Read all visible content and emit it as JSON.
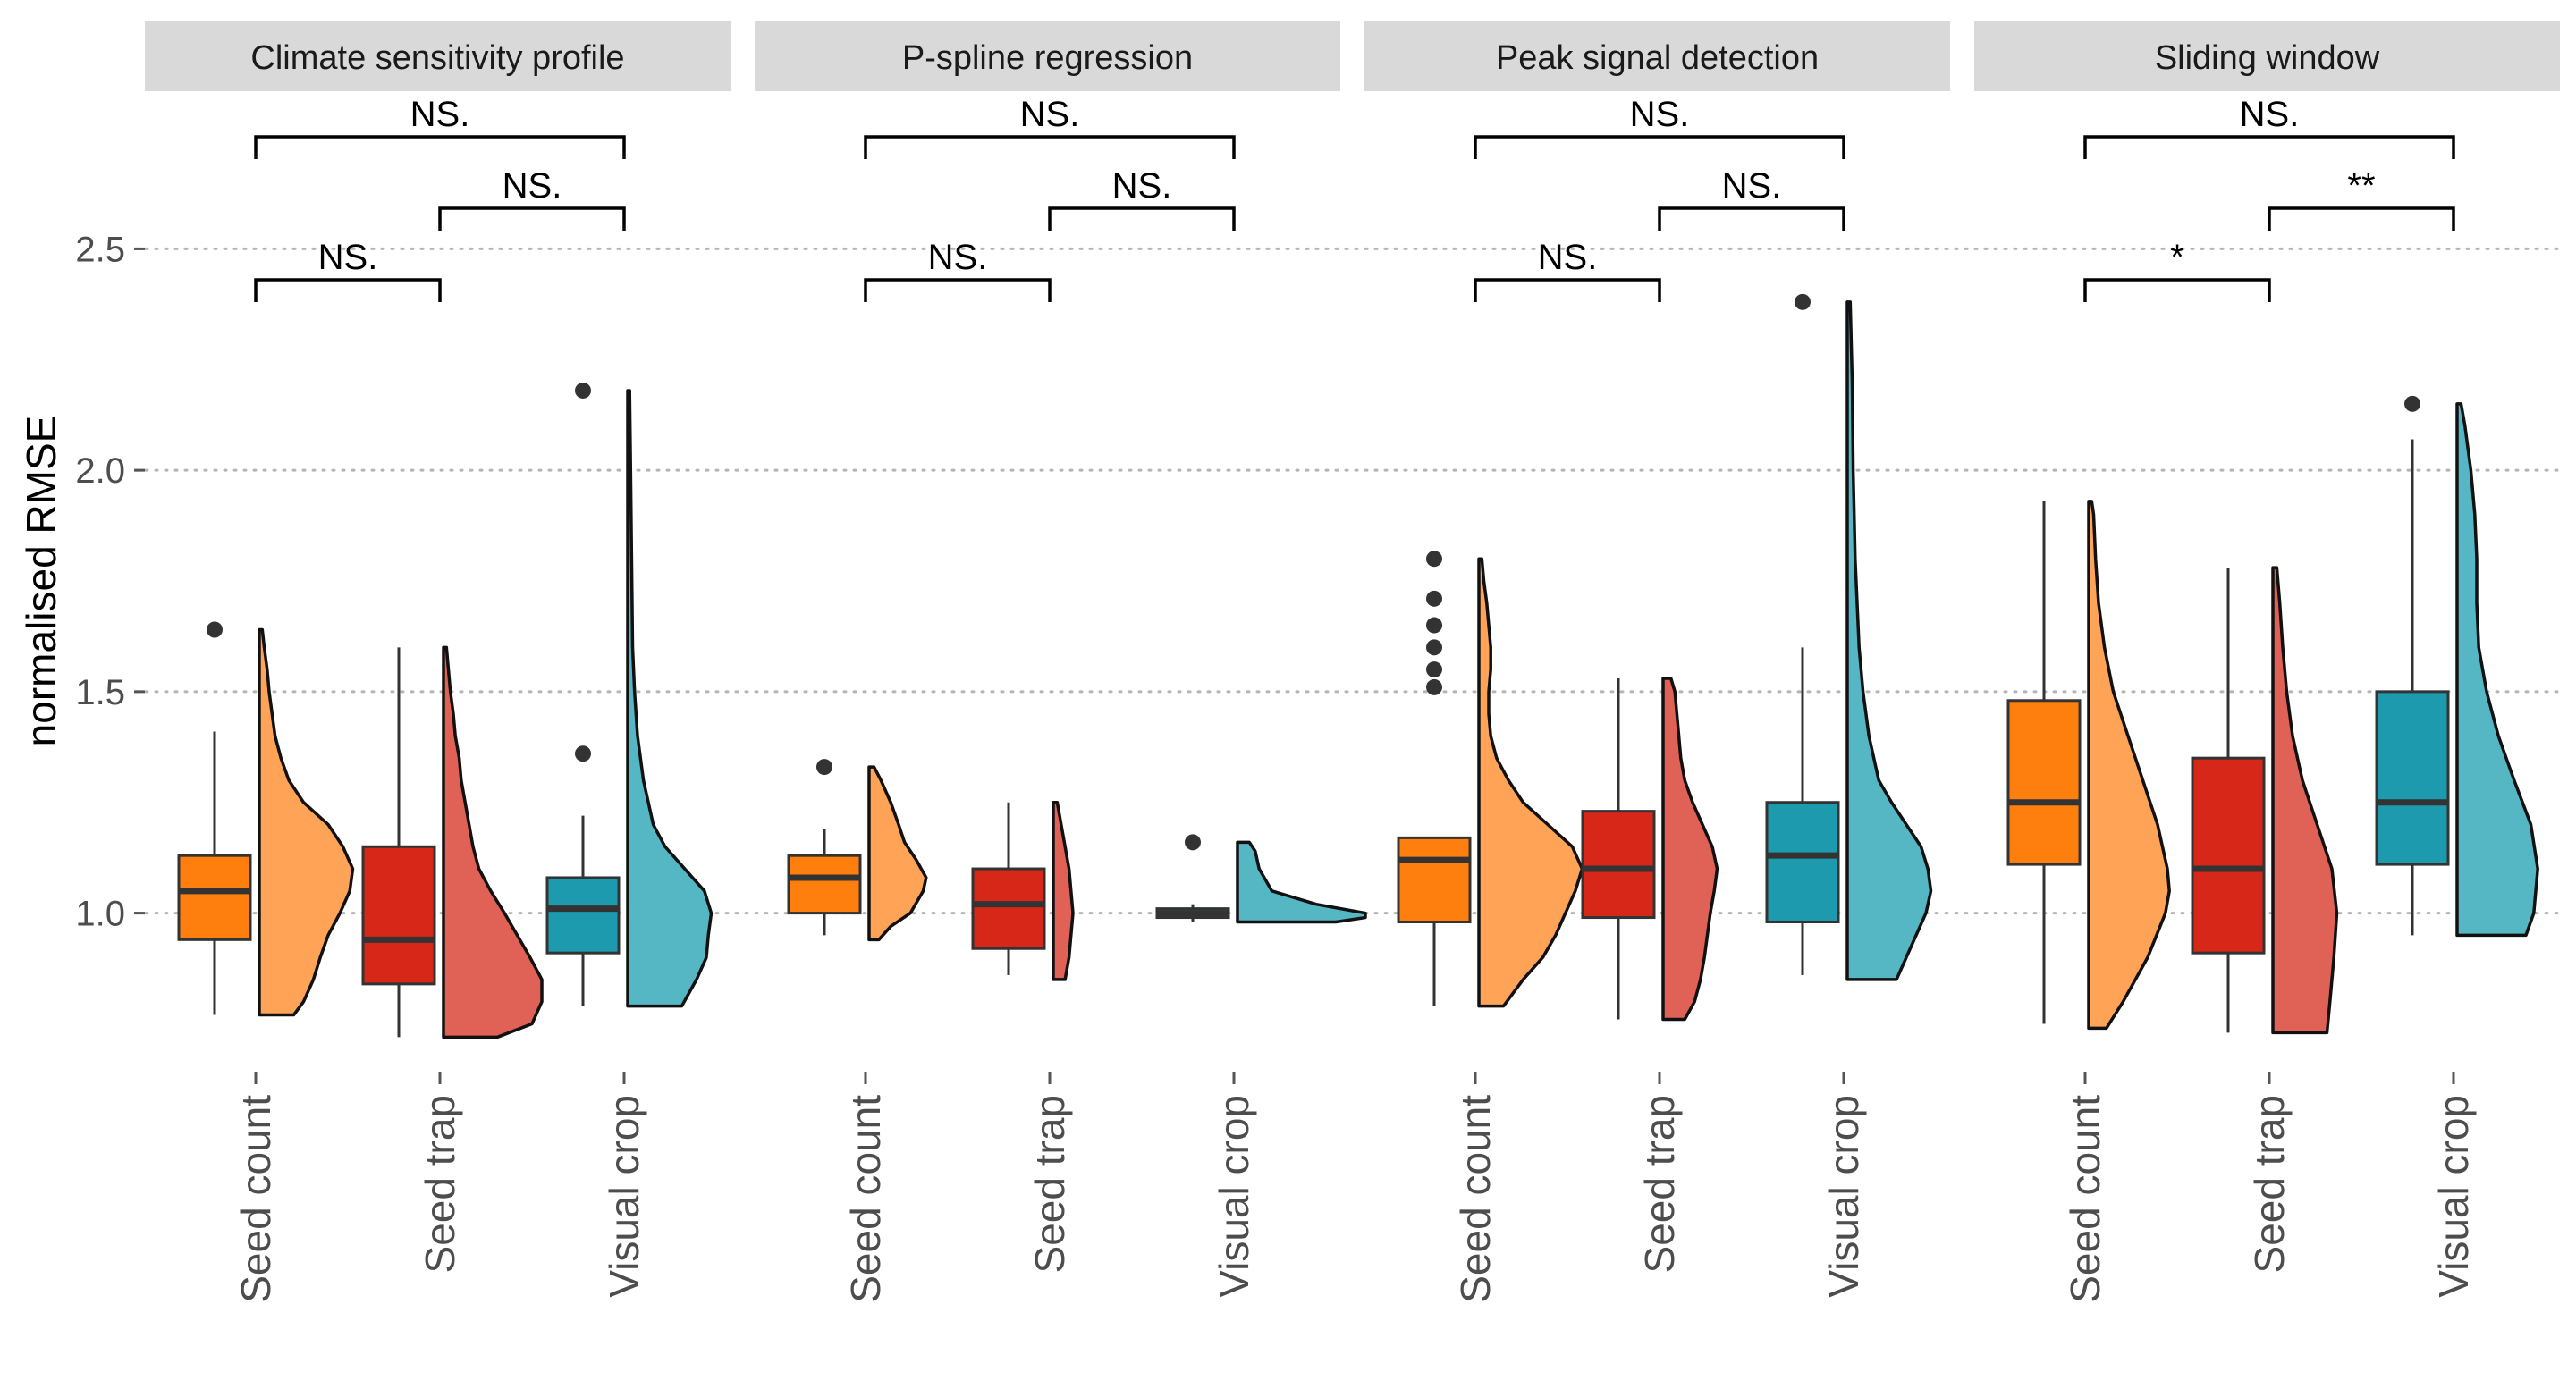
{
  "chart_data": {
    "type": "raincloud-boxplot",
    "ylabel": "normalised RMSE",
    "xlabel": "",
    "ylim": [
      0.65,
      2.85
    ],
    "yticks": [
      1.0,
      1.5,
      2.0,
      2.5
    ],
    "ytick_labels": [
      "1.0",
      "1.5",
      "2.0",
      "2.5"
    ],
    "grid": "horizontal dotted at major y ticks",
    "categories": [
      "Seed count",
      "Seed trap",
      "Visual crop"
    ],
    "colors": {
      "Seed count": {
        "box": "#ff7f0e",
        "violin": "#ffa357"
      },
      "Seed trap": {
        "box": "#d62718",
        "violin": "#e06155"
      },
      "Visual crop": {
        "box": "#1d9aae",
        "violin": "#55b6c4"
      }
    },
    "comparison_pairs": [
      [
        "Seed count",
        "Visual crop"
      ],
      [
        "Seed trap",
        "Visual crop"
      ],
      [
        "Seed count",
        "Seed trap"
      ]
    ],
    "panels": [
      {
        "title": "Climate sensitivity profile",
        "groups": [
          {
            "category": "Seed count",
            "whisker_low": 0.77,
            "q1": 0.94,
            "median": 1.05,
            "q3": 1.13,
            "whisker_high": 1.41,
            "outliers": [
              1.64
            ],
            "density_range": [
              0.77,
              1.64
            ],
            "density": [
              [
                0.77,
                0.35
              ],
              [
                0.8,
                0.45
              ],
              [
                0.85,
                0.55
              ],
              [
                0.9,
                0.62
              ],
              [
                0.95,
                0.7
              ],
              [
                1.0,
                0.82
              ],
              [
                1.05,
                0.92
              ],
              [
                1.1,
                0.95
              ],
              [
                1.15,
                0.85
              ],
              [
                1.2,
                0.7
              ],
              [
                1.25,
                0.45
              ],
              [
                1.3,
                0.3
              ],
              [
                1.35,
                0.22
              ],
              [
                1.4,
                0.16
              ],
              [
                1.45,
                0.13
              ],
              [
                1.5,
                0.1
              ],
              [
                1.55,
                0.08
              ],
              [
                1.6,
                0.05
              ],
              [
                1.64,
                0.03
              ]
            ]
          },
          {
            "category": "Seed trap",
            "whisker_low": 0.72,
            "q1": 0.84,
            "median": 0.94,
            "q3": 1.15,
            "whisker_high": 1.6,
            "outliers": [],
            "density_range": [
              0.72,
              1.6
            ],
            "density": [
              [
                0.72,
                0.55
              ],
              [
                0.75,
                0.9
              ],
              [
                0.8,
                1.0
              ],
              [
                0.85,
                1.0
              ],
              [
                0.9,
                0.88
              ],
              [
                0.95,
                0.75
              ],
              [
                1.0,
                0.62
              ],
              [
                1.05,
                0.48
              ],
              [
                1.1,
                0.36
              ],
              [
                1.15,
                0.3
              ],
              [
                1.2,
                0.26
              ],
              [
                1.25,
                0.22
              ],
              [
                1.3,
                0.18
              ],
              [
                1.35,
                0.16
              ],
              [
                1.4,
                0.12
              ],
              [
                1.45,
                0.1
              ],
              [
                1.5,
                0.07
              ],
              [
                1.55,
                0.05
              ],
              [
                1.6,
                0.03
              ]
            ]
          },
          {
            "category": "Visual crop",
            "whisker_low": 0.79,
            "q1": 0.91,
            "median": 1.01,
            "q3": 1.08,
            "whisker_high": 1.22,
            "outliers": [
              1.36,
              2.18
            ],
            "density_range": [
              0.79,
              2.18
            ],
            "density": [
              [
                0.79,
                0.55
              ],
              [
                0.85,
                0.7
              ],
              [
                0.9,
                0.8
              ],
              [
                0.95,
                0.82
              ],
              [
                1.0,
                0.85
              ],
              [
                1.05,
                0.78
              ],
              [
                1.1,
                0.58
              ],
              [
                1.15,
                0.38
              ],
              [
                1.2,
                0.26
              ],
              [
                1.3,
                0.16
              ],
              [
                1.4,
                0.1
              ],
              [
                1.5,
                0.07
              ],
              [
                1.6,
                0.05
              ],
              [
                1.8,
                0.04
              ],
              [
                2.0,
                0.03
              ],
              [
                2.18,
                0.02
              ]
            ]
          }
        ],
        "significance": [
          "NS.",
          "NS.",
          "NS."
        ]
      },
      {
        "title": "P-spline regression",
        "groups": [
          {
            "category": "Seed count",
            "whisker_low": 0.95,
            "q1": 1.0,
            "median": 1.08,
            "q3": 1.13,
            "whisker_high": 1.19,
            "outliers": [
              1.33
            ],
            "density_range": [
              0.94,
              1.33
            ],
            "density": [
              [
                0.94,
                0.1
              ],
              [
                0.97,
                0.22
              ],
              [
                1.0,
                0.42
              ],
              [
                1.05,
                0.55
              ],
              [
                1.08,
                0.58
              ],
              [
                1.12,
                0.48
              ],
              [
                1.16,
                0.36
              ],
              [
                1.2,
                0.3
              ],
              [
                1.25,
                0.22
              ],
              [
                1.3,
                0.12
              ],
              [
                1.33,
                0.05
              ]
            ]
          },
          {
            "category": "Seed trap",
            "whisker_low": 0.86,
            "q1": 0.92,
            "median": 1.02,
            "q3": 1.1,
            "whisker_high": 1.25,
            "outliers": [],
            "density_range": [
              0.85,
              1.25
            ],
            "density": [
              [
                0.85,
                0.12
              ],
              [
                0.9,
                0.16
              ],
              [
                0.95,
                0.18
              ],
              [
                1.0,
                0.2
              ],
              [
                1.05,
                0.18
              ],
              [
                1.1,
                0.16
              ],
              [
                1.15,
                0.12
              ],
              [
                1.2,
                0.08
              ],
              [
                1.25,
                0.04
              ]
            ]
          },
          {
            "category": "Visual crop",
            "whisker_low": 0.98,
            "q1": 0.99,
            "median": 1.0,
            "q3": 1.01,
            "whisker_high": 1.02,
            "outliers": [
              1.16
            ],
            "density_range": [
              0.98,
              1.16
            ],
            "density": [
              [
                0.98,
                1.0
              ],
              [
                0.99,
                1.3
              ],
              [
                1.0,
                1.3
              ],
              [
                1.02,
                0.8
              ],
              [
                1.05,
                0.35
              ],
              [
                1.1,
                0.22
              ],
              [
                1.14,
                0.18
              ],
              [
                1.16,
                0.12
              ]
            ]
          }
        ],
        "significance": [
          "NS.",
          "NS.",
          "NS."
        ]
      },
      {
        "title": "Peak signal detection",
        "groups": [
          {
            "category": "Seed count",
            "whisker_low": 0.79,
            "q1": 0.98,
            "median": 1.12,
            "q3": 1.17,
            "whisker_high": 1.17,
            "outliers": [
              1.51,
              1.55,
              1.6,
              1.65,
              1.71,
              1.8
            ],
            "density_range": [
              0.79,
              1.8
            ],
            "density": [
              [
                0.79,
                0.25
              ],
              [
                0.85,
                0.45
              ],
              [
                0.9,
                0.65
              ],
              [
                0.95,
                0.78
              ],
              [
                1.0,
                0.88
              ],
              [
                1.05,
                0.98
              ],
              [
                1.1,
                1.05
              ],
              [
                1.15,
                0.95
              ],
              [
                1.2,
                0.7
              ],
              [
                1.25,
                0.45
              ],
              [
                1.3,
                0.3
              ],
              [
                1.35,
                0.18
              ],
              [
                1.4,
                0.12
              ],
              [
                1.45,
                0.1
              ],
              [
                1.5,
                0.1
              ],
              [
                1.55,
                0.12
              ],
              [
                1.6,
                0.12
              ],
              [
                1.65,
                0.1
              ],
              [
                1.7,
                0.08
              ],
              [
                1.75,
                0.05
              ],
              [
                1.8,
                0.03
              ]
            ]
          },
          {
            "category": "Seed trap",
            "whisker_low": 0.76,
            "q1": 0.99,
            "median": 1.1,
            "q3": 1.23,
            "whisker_high": 1.53,
            "outliers": [],
            "density_range": [
              0.76,
              1.53
            ],
            "density": [
              [
                0.76,
                0.22
              ],
              [
                0.8,
                0.32
              ],
              [
                0.85,
                0.38
              ],
              [
                0.9,
                0.42
              ],
              [
                0.95,
                0.45
              ],
              [
                1.0,
                0.48
              ],
              [
                1.05,
                0.52
              ],
              [
                1.1,
                0.55
              ],
              [
                1.15,
                0.5
              ],
              [
                1.2,
                0.4
              ],
              [
                1.25,
                0.3
              ],
              [
                1.3,
                0.22
              ],
              [
                1.35,
                0.18
              ],
              [
                1.4,
                0.16
              ],
              [
                1.45,
                0.14
              ],
              [
                1.5,
                0.12
              ],
              [
                1.53,
                0.08
              ]
            ]
          },
          {
            "category": "Visual crop",
            "whisker_low": 0.86,
            "q1": 0.98,
            "median": 1.13,
            "q3": 1.25,
            "whisker_high": 1.6,
            "outliers": [
              2.38
            ],
            "density_range": [
              0.85,
              2.38
            ],
            "density": [
              [
                0.85,
                0.5
              ],
              [
                0.9,
                0.6
              ],
              [
                0.95,
                0.7
              ],
              [
                1.0,
                0.8
              ],
              [
                1.05,
                0.85
              ],
              [
                1.1,
                0.82
              ],
              [
                1.15,
                0.75
              ],
              [
                1.2,
                0.6
              ],
              [
                1.25,
                0.45
              ],
              [
                1.3,
                0.32
              ],
              [
                1.4,
                0.22
              ],
              [
                1.5,
                0.16
              ],
              [
                1.6,
                0.12
              ],
              [
                1.8,
                0.08
              ],
              [
                2.0,
                0.06
              ],
              [
                2.2,
                0.05
              ],
              [
                2.38,
                0.03
              ]
            ]
          }
        ],
        "significance": [
          "NS.",
          "NS.",
          "NS."
        ]
      },
      {
        "title": "Sliding window",
        "groups": [
          {
            "category": "Seed count",
            "whisker_low": 0.75,
            "q1": 1.11,
            "median": 1.25,
            "q3": 1.48,
            "whisker_high": 1.93,
            "outliers": [],
            "density_range": [
              0.74,
              1.93
            ],
            "density": [
              [
                0.74,
                0.18
              ],
              [
                0.8,
                0.35
              ],
              [
                0.9,
                0.6
              ],
              [
                1.0,
                0.78
              ],
              [
                1.05,
                0.82
              ],
              [
                1.1,
                0.8
              ],
              [
                1.2,
                0.7
              ],
              [
                1.3,
                0.55
              ],
              [
                1.4,
                0.4
              ],
              [
                1.5,
                0.25
              ],
              [
                1.6,
                0.16
              ],
              [
                1.7,
                0.1
              ],
              [
                1.8,
                0.07
              ],
              [
                1.9,
                0.05
              ],
              [
                1.93,
                0.03
              ]
            ]
          },
          {
            "category": "Seed trap",
            "whisker_low": 0.73,
            "q1": 0.91,
            "median": 1.1,
            "q3": 1.35,
            "whisker_high": 1.78,
            "outliers": [],
            "density_range": [
              0.73,
              1.78
            ],
            "density": [
              [
                0.73,
                0.55
              ],
              [
                0.8,
                0.58
              ],
              [
                0.9,
                0.62
              ],
              [
                1.0,
                0.65
              ],
              [
                1.1,
                0.6
              ],
              [
                1.2,
                0.45
              ],
              [
                1.3,
                0.3
              ],
              [
                1.4,
                0.2
              ],
              [
                1.5,
                0.14
              ],
              [
                1.6,
                0.1
              ],
              [
                1.7,
                0.07
              ],
              [
                1.78,
                0.04
              ]
            ]
          },
          {
            "category": "Visual crop",
            "whisker_low": 0.95,
            "q1": 1.11,
            "median": 1.25,
            "q3": 1.5,
            "whisker_high": 2.07,
            "outliers": [
              2.15
            ],
            "density_range": [
              0.95,
              2.15
            ],
            "density": [
              [
                0.95,
                0.7
              ],
              [
                1.0,
                0.78
              ],
              [
                1.1,
                0.82
              ],
              [
                1.2,
                0.75
              ],
              [
                1.3,
                0.58
              ],
              [
                1.4,
                0.42
              ],
              [
                1.5,
                0.3
              ],
              [
                1.6,
                0.22
              ],
              [
                1.7,
                0.2
              ],
              [
                1.8,
                0.2
              ],
              [
                1.9,
                0.18
              ],
              [
                2.0,
                0.14
              ],
              [
                2.1,
                0.08
              ],
              [
                2.15,
                0.04
              ]
            ]
          }
        ],
        "significance": [
          "NS.",
          "**",
          "*"
        ]
      }
    ]
  }
}
